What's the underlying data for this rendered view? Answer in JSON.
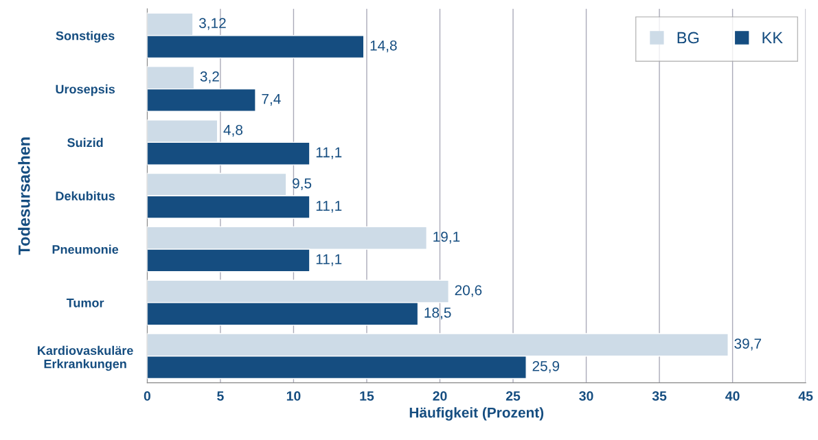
{
  "chart_data": {
    "type": "bar",
    "orientation": "horizontal",
    "xlabel": "Häufigkeit (Prozent)",
    "ylabel": "Todesursachen",
    "categories": [
      "Sonstiges",
      "Urosepsis",
      "Suizid",
      "Dekubitus",
      "Pneumonie",
      "Tumor",
      "Kardiovaskuläre\nErkrankungen"
    ],
    "series": [
      {
        "name": "BG",
        "color": "#cddbe7",
        "values": [
          3.12,
          3.2,
          4.8,
          9.5,
          19.1,
          20.6,
          39.7
        ],
        "value_labels": [
          "3,12",
          "3,2",
          "4,8",
          "9,5",
          "19,1",
          "20,6",
          "39,7"
        ]
      },
      {
        "name": "KK",
        "color": "#154d80",
        "values": [
          14.8,
          7.4,
          11.1,
          11.1,
          11.1,
          18.5,
          25.9
        ],
        "value_labels": [
          "14,8",
          "7,4",
          "11,1",
          "11,1",
          "11,1",
          "18,5",
          "25,9"
        ]
      }
    ],
    "xlim": [
      0,
      45
    ],
    "xticks": [
      0,
      5,
      10,
      15,
      20,
      25,
      30,
      35,
      40,
      45
    ],
    "grid": "x",
    "legend": "top right"
  }
}
